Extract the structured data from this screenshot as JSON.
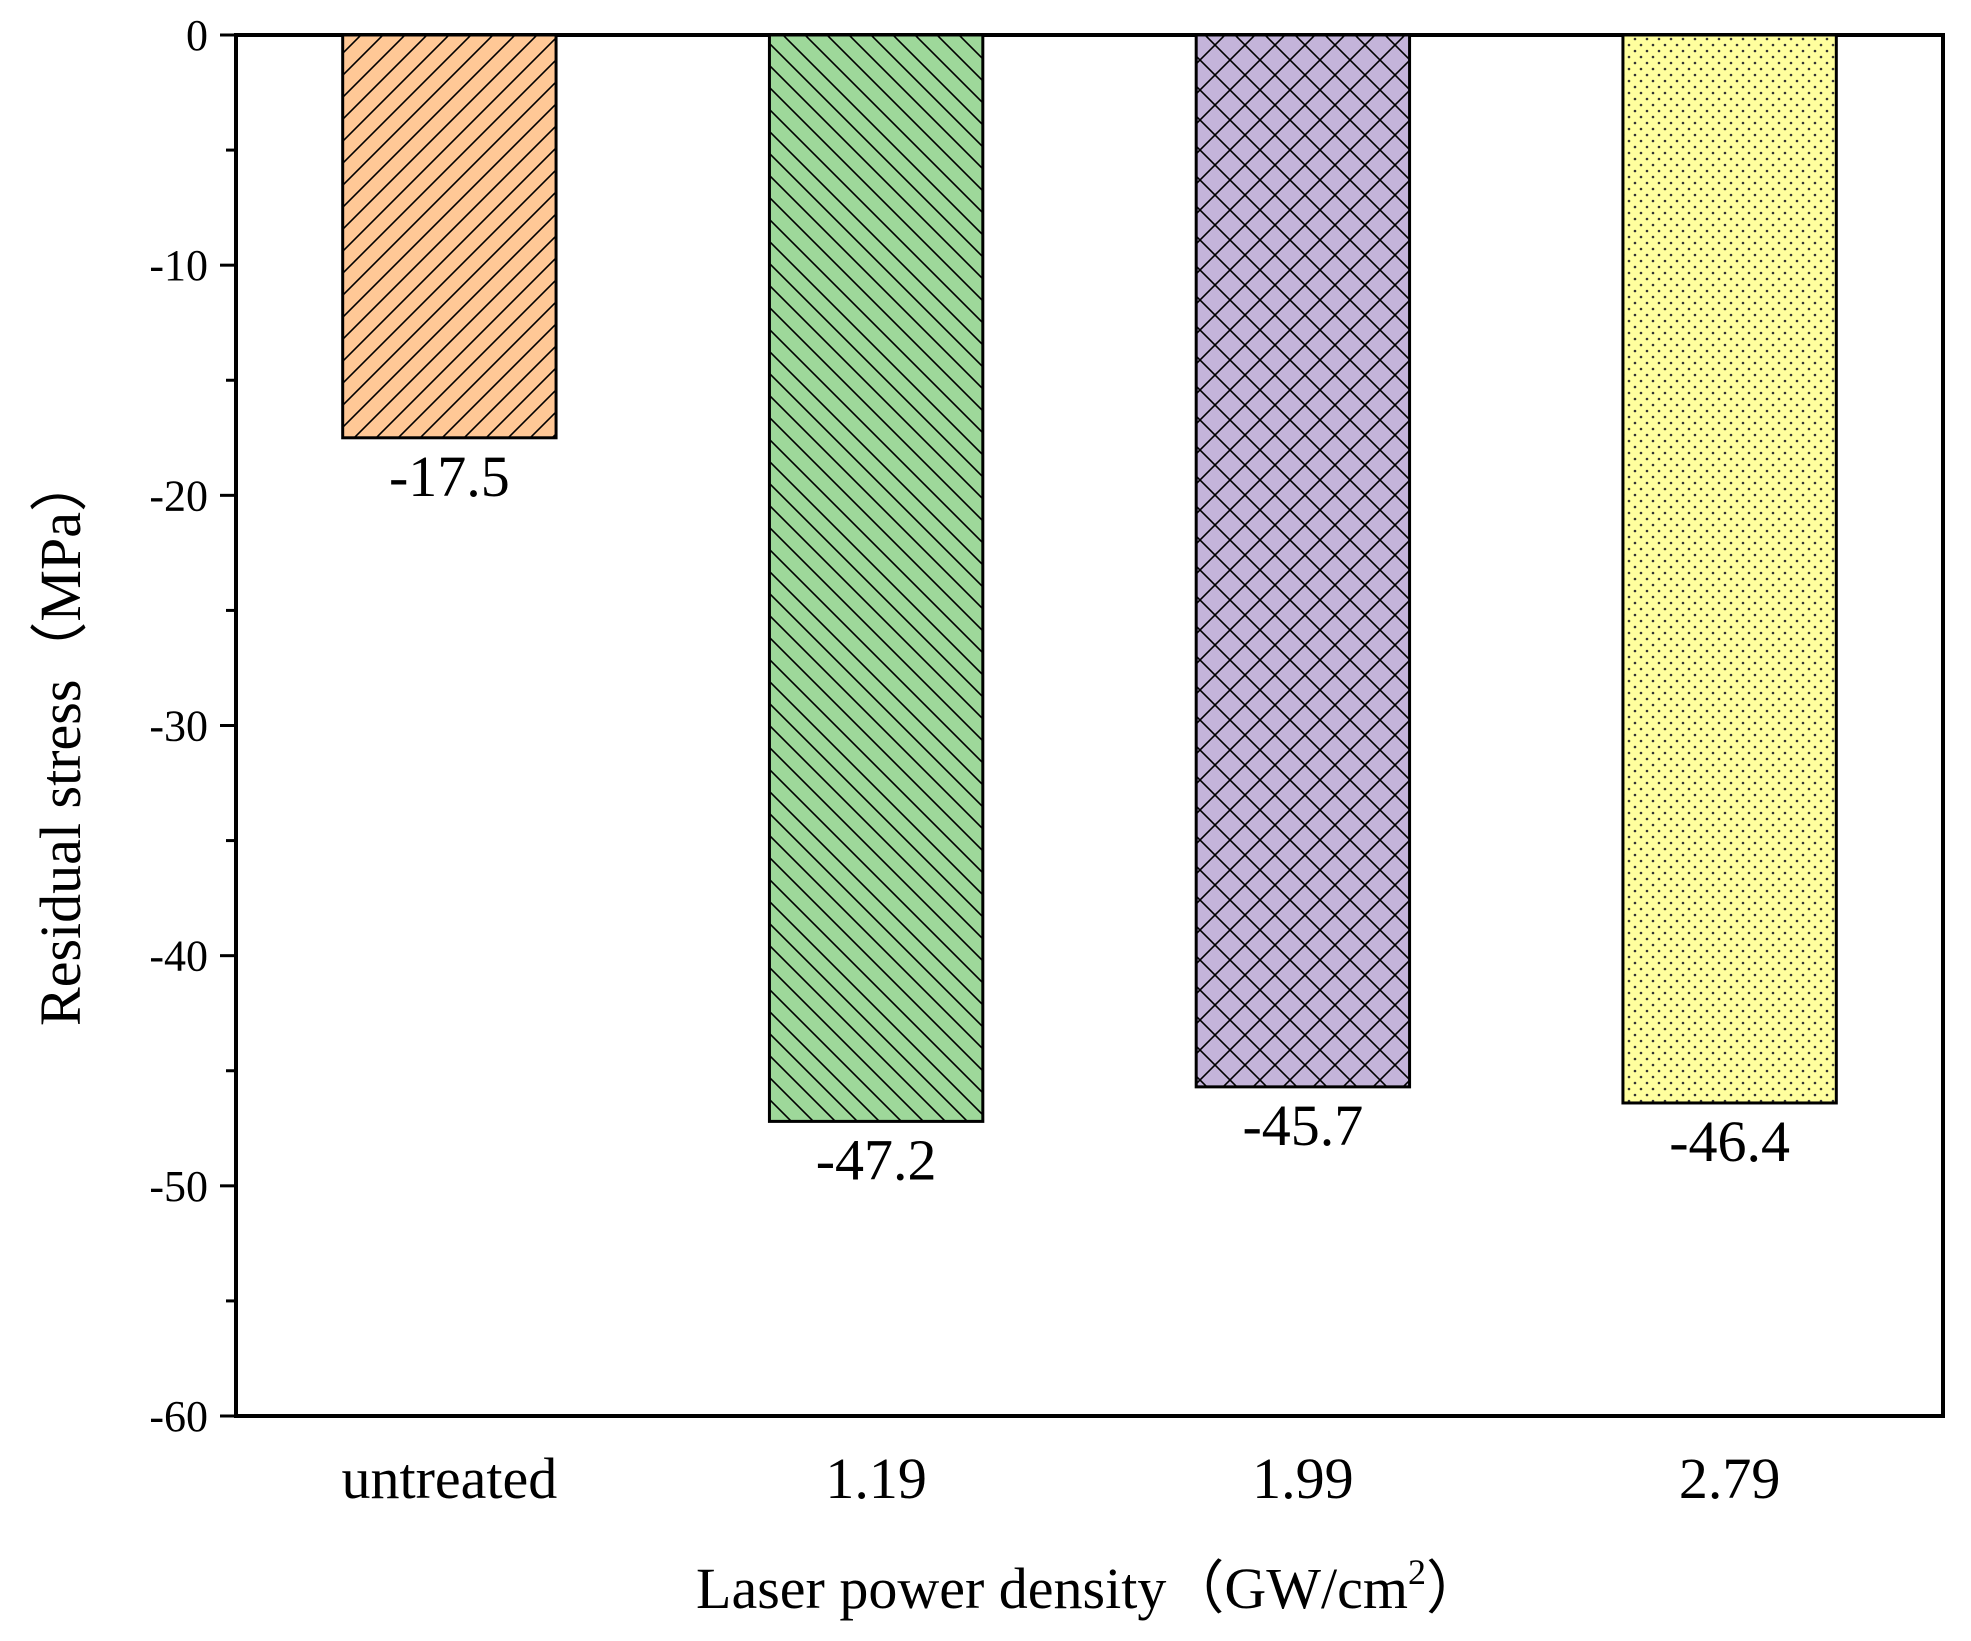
{
  "chart_data": {
    "type": "bar",
    "title": "",
    "xlabel": "Laser power density（GW/cm",
    "xlabel_superscript": "2",
    "xlabel_close": "）",
    "ylabel": "Residual stress（MPa）",
    "ylim": [
      -60,
      0
    ],
    "yticks": [
      0,
      -10,
      -20,
      -30,
      -40,
      -50,
      -60
    ],
    "grid": false,
    "categories": [
      "untreated",
      "1.19",
      "1.99",
      "2.79"
    ],
    "values": [
      -17.5,
      -47.2,
      -45.7,
      -46.4
    ],
    "value_labels": [
      "-17.5",
      "-47.2",
      "-45.7",
      "-46.4"
    ],
    "colors": [
      "#FFC896",
      "#9ED89A",
      "#C4B4DA",
      "#FFFF9E"
    ],
    "patterns": [
      "diagonal-up",
      "diagonal-down",
      "crosshatch",
      "dots"
    ]
  }
}
